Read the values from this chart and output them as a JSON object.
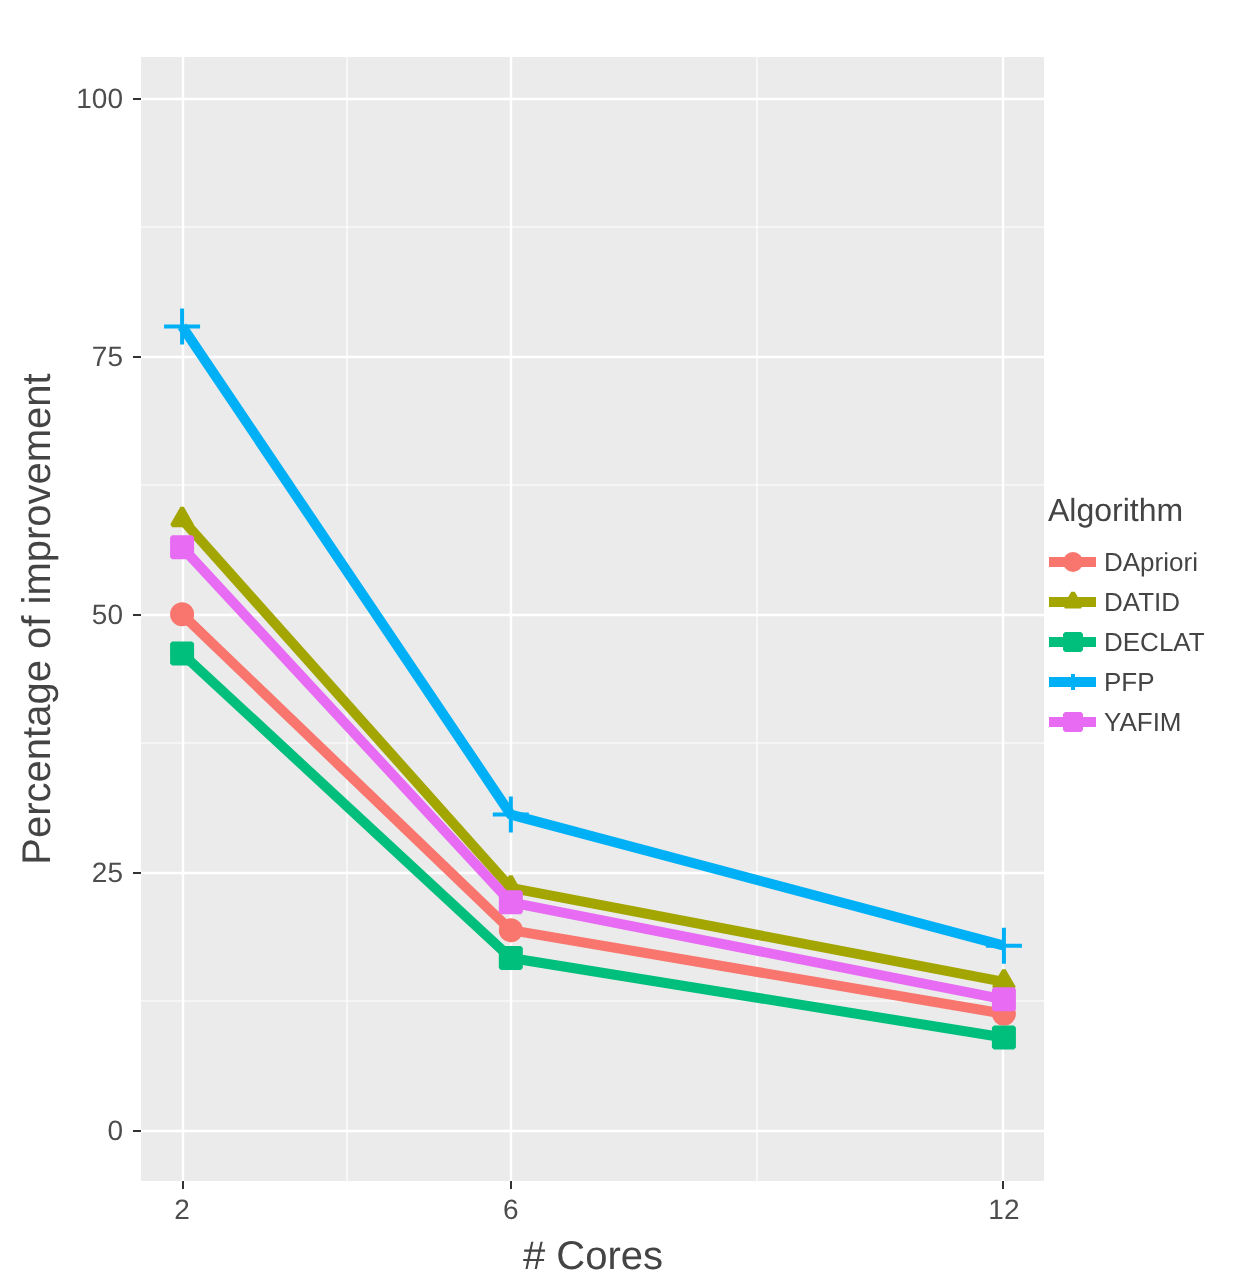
{
  "chart_data": {
    "type": "line",
    "xlabel": "# Cores",
    "ylabel": "Percentage of improvement",
    "legend_title": "Algorithm",
    "x": [
      2,
      6,
      12
    ],
    "xlim": [
      1.5,
      12.5
    ],
    "xticks": [
      2,
      6,
      12
    ],
    "ylim": [
      -4.9,
      104
    ],
    "yticks": [
      0,
      25,
      50,
      75,
      100
    ],
    "grid": true,
    "legend": "right",
    "series": [
      {
        "name": "DApriori",
        "color": "#f8766d",
        "marker": "circle",
        "values": [
          50,
          19.4,
          11.3
        ]
      },
      {
        "name": "DATID",
        "color": "#a3a500",
        "marker": "triangle",
        "values": [
          59.2,
          23.5,
          14.4
        ]
      },
      {
        "name": "DECLAT",
        "color": "#00bf7d",
        "marker": "square",
        "values": [
          46.2,
          16.7,
          9.0
        ]
      },
      {
        "name": "PFP",
        "color": "#00b0f6",
        "marker": "cross",
        "values": [
          77.9,
          30.6,
          17.9
        ]
      },
      {
        "name": "YAFIM",
        "color": "#e76bf3",
        "marker": "square",
        "values": [
          56.5,
          22.1,
          12.7
        ]
      }
    ]
  }
}
